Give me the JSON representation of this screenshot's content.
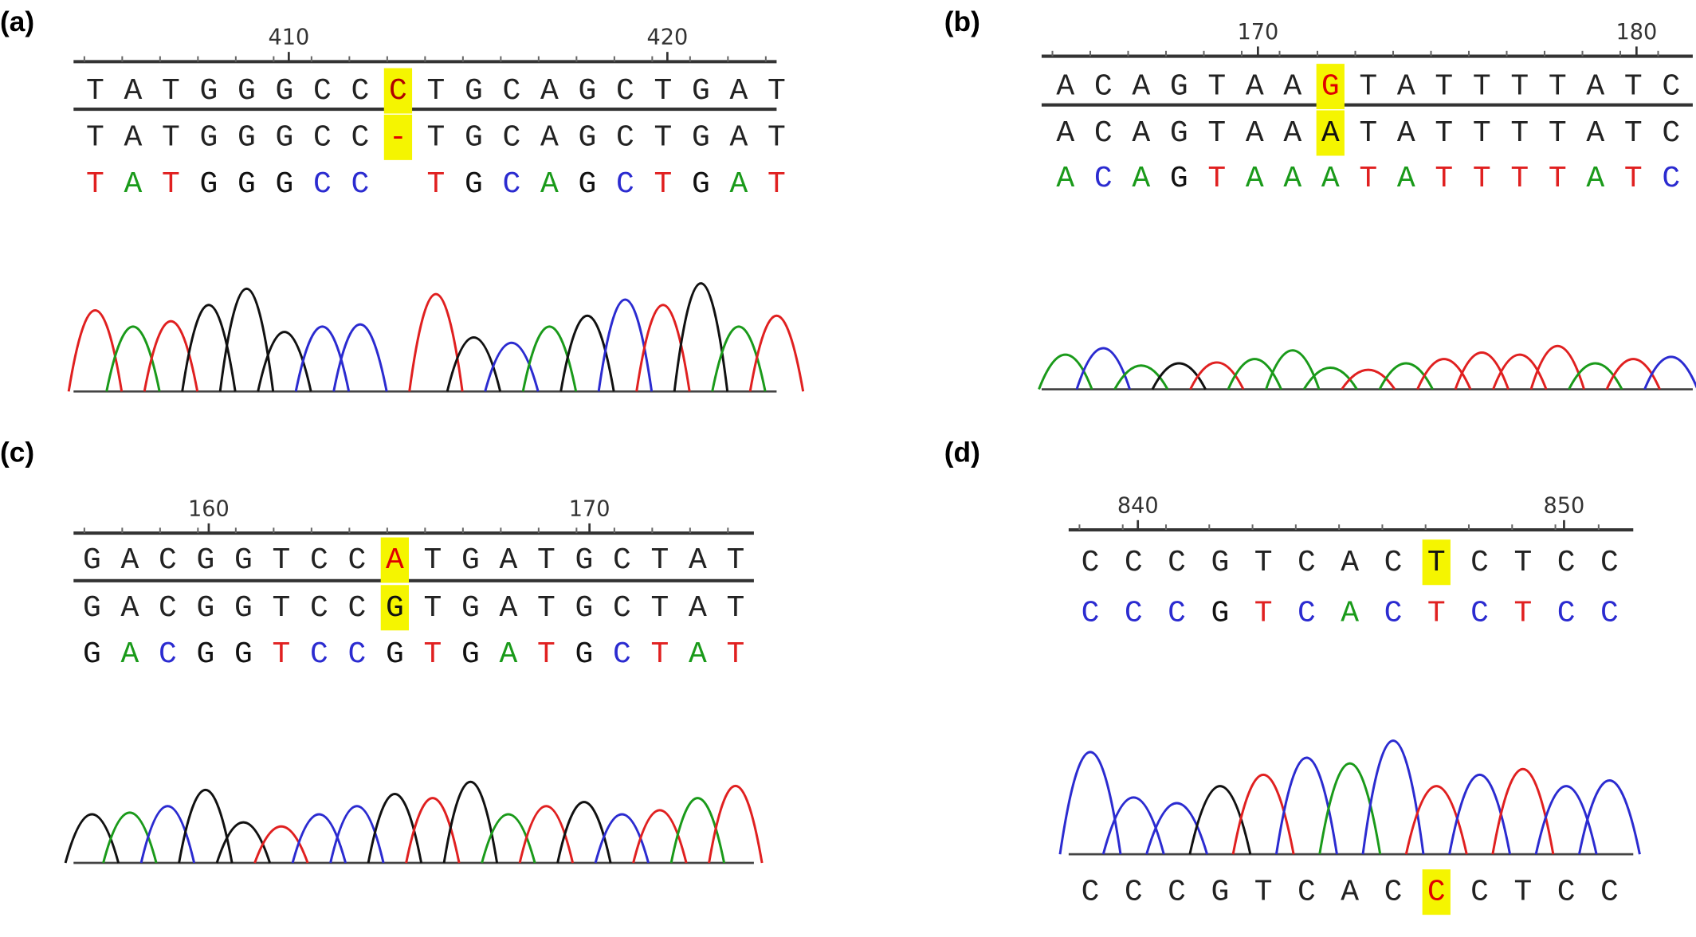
{
  "panels": [
    {
      "label": "(a)",
      "ruler": [
        410,
        420
      ],
      "highlight": 8,
      "rows": [
        {
          "letters": [
            "T",
            "A",
            "T",
            "G",
            "G",
            "G",
            "C",
            "C",
            "C",
            "T",
            "G",
            "C",
            "A",
            "G",
            "C",
            "T",
            "G",
            "A",
            "T"
          ],
          "colored": false,
          "highlight_color": "#b00000"
        },
        {
          "letters": [
            "T",
            "A",
            "T",
            "G",
            "G",
            "G",
            "C",
            "C",
            "-",
            "T",
            "G",
            "C",
            "A",
            "G",
            "C",
            "T",
            "G",
            "A",
            "T"
          ],
          "colored": false,
          "highlight_color": "#e00000"
        },
        {
          "letters": [
            "T",
            "A",
            "T",
            "G",
            "G",
            "G",
            "C",
            "C",
            null,
            "T",
            "G",
            "C",
            "A",
            "G",
            "C",
            "T",
            "G",
            "A",
            "T"
          ],
          "colored": true
        }
      ]
    },
    {
      "label": "(b)",
      "ruler": [
        170,
        180
      ],
      "highlight": 7,
      "rows": [
        {
          "letters": [
            "A",
            "C",
            "A",
            "G",
            "T",
            "A",
            "A",
            "G",
            "T",
            "A",
            "T",
            "T",
            "T",
            "T",
            "A",
            "T",
            "C"
          ],
          "colored": false,
          "highlight_color": "#e00000"
        },
        {
          "letters": [
            "A",
            "C",
            "A",
            "G",
            "T",
            "A",
            "A",
            "A",
            "T",
            "A",
            "T",
            "T",
            "T",
            "T",
            "A",
            "T",
            "C"
          ],
          "colored": false,
          "highlight_color": "#111111"
        },
        {
          "letters": [
            "A",
            "C",
            "A",
            "G",
            "T",
            "A",
            "A",
            "A",
            "T",
            "A",
            "T",
            "T",
            "T",
            "T",
            "A",
            "T",
            "C"
          ],
          "colored": true
        }
      ]
    },
    {
      "label": "(c)",
      "ruler": [
        160,
        170
      ],
      "highlight": 8,
      "rows": [
        {
          "letters": [
            "G",
            "A",
            "C",
            "G",
            "G",
            "T",
            "C",
            "C",
            "A",
            "T",
            "G",
            "A",
            "T",
            "G",
            "C",
            "T",
            "A",
            "T"
          ],
          "colored": false,
          "highlight_color": "#e00000"
        },
        {
          "letters": [
            "G",
            "A",
            "C",
            "G",
            "G",
            "T",
            "C",
            "C",
            "G",
            "T",
            "G",
            "A",
            "T",
            "G",
            "C",
            "T",
            "A",
            "T"
          ],
          "colored": false,
          "highlight_color": "#111111"
        },
        {
          "letters": [
            "G",
            "A",
            "C",
            "G",
            "G",
            "T",
            "C",
            "C",
            "G",
            "T",
            "G",
            "A",
            "T",
            "G",
            "C",
            "T",
            "A",
            "T"
          ],
          "colored": true
        }
      ]
    },
    {
      "label": "(d)",
      "ruler": [
        840,
        850
      ],
      "highlight": 8,
      "rows": [
        {
          "letters": [
            "C",
            "C",
            "C",
            "G",
            "T",
            "C",
            "A",
            "C",
            "T",
            "C",
            "T",
            "C",
            "C"
          ],
          "colored": false,
          "highlight_color": "#111111"
        },
        {
          "letters": [
            "C",
            "C",
            "C",
            "G",
            "T",
            "C",
            "A",
            "C",
            "T",
            "C",
            "T",
            "C",
            "C"
          ],
          "colored": true
        },
        {
          "letters": [
            "C",
            "C",
            "C",
            "G",
            "T",
            "C",
            "A",
            "C",
            "C",
            "C",
            "T",
            "C",
            "C"
          ],
          "colored": false,
          "highlight_color": "#e00000"
        }
      ]
    }
  ]
}
